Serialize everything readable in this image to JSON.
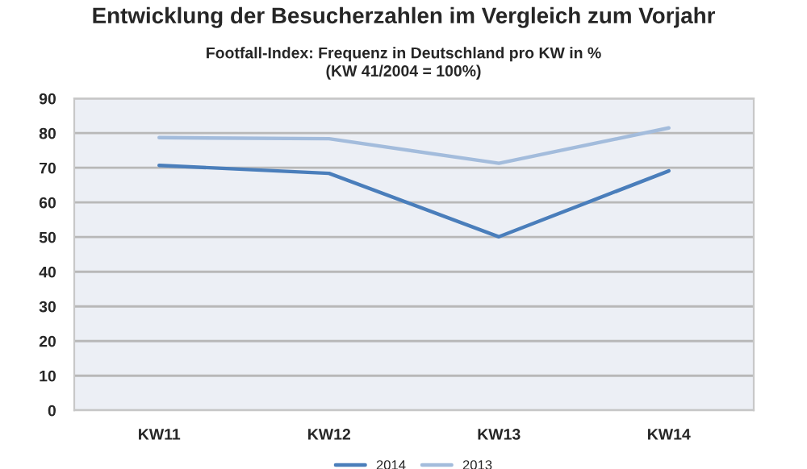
{
  "chart_data": {
    "type": "line",
    "title": "Entwicklung der Besucherzahlen im Vergleich zum Vorjahr",
    "subtitle": "Footfall-Index: Frequenz in Deutschland pro KW in %\n(KW 41/2004 = 100%)",
    "categories": [
      "KW11",
      "KW12",
      "KW13",
      "KW14"
    ],
    "series": [
      {
        "name": "2014",
        "color": "#4a7ebb",
        "values": [
          70.7,
          68.4,
          50.1,
          69.1
        ]
      },
      {
        "name": "2013",
        "color": "#a3bcdc",
        "values": [
          78.7,
          78.4,
          71.3,
          81.5
        ]
      }
    ],
    "ylim": [
      0,
      90
    ],
    "yticks": [
      0,
      10,
      20,
      30,
      40,
      50,
      60,
      70,
      80,
      90
    ],
    "grid": "y",
    "legend": "bottom",
    "marker": "none",
    "line_style": "solid"
  }
}
